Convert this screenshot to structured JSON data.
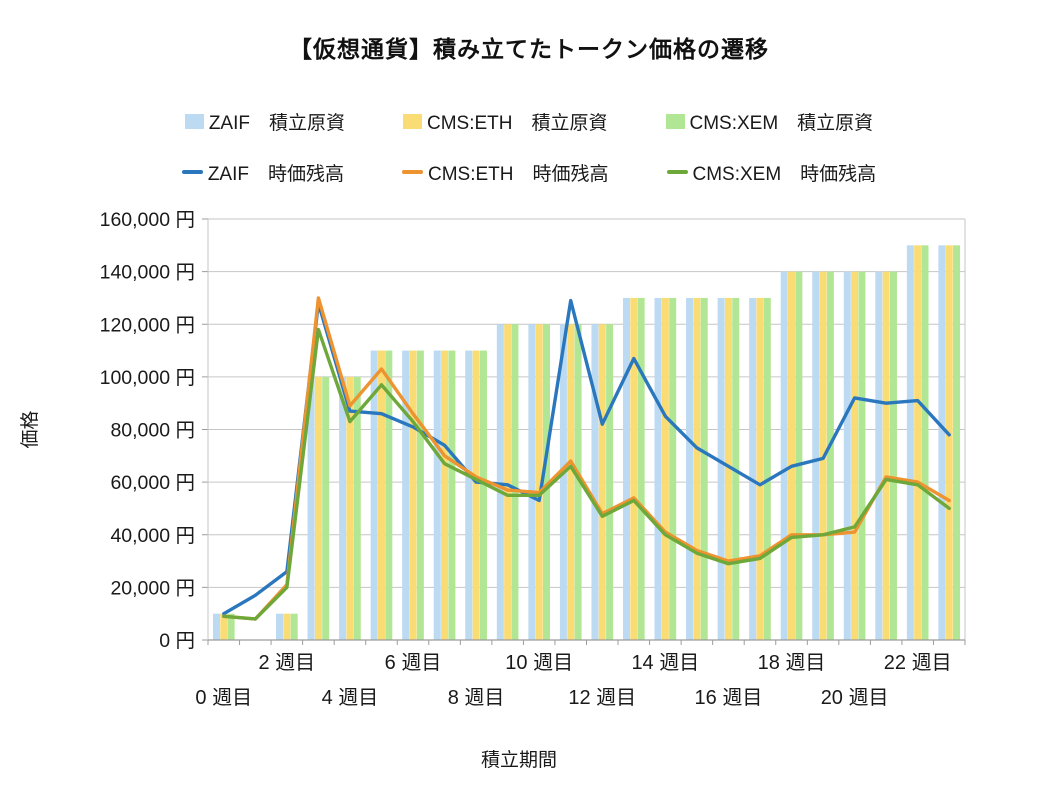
{
  "chart_data": {
    "type": "combo-bar-line",
    "title": "【仮想通貨】積み立てたトークン価格の遷移",
    "xlabel": "積立期間",
    "ylabel": "価格",
    "ylim": [
      0,
      160000
    ],
    "grid": true,
    "legend_position": "top",
    "colors": {
      "grid": "#c6c6c6",
      "axis": "#9c9c9c",
      "text": "#1a1a1a"
    },
    "weeks": [
      0,
      1,
      2,
      3,
      4,
      5,
      6,
      7,
      8,
      9,
      10,
      11,
      12,
      13,
      14,
      15,
      16,
      17,
      18,
      19,
      20,
      21,
      22,
      23
    ],
    "y_tick_values": [
      0,
      20000,
      40000,
      60000,
      80000,
      100000,
      120000,
      140000,
      160000
    ],
    "y_tick_labels": [
      "0 円",
      "20,000 円",
      "40,000 円",
      "60,000 円",
      "80,000 円",
      "100,000 円",
      "120,000 円",
      "140,000 円",
      "160,000 円"
    ],
    "x_ticks_upper": [
      {
        "week": 2,
        "label": "2 週目"
      },
      {
        "week": 6,
        "label": "6 週目"
      },
      {
        "week": 10,
        "label": "10 週目"
      },
      {
        "week": 14,
        "label": "14 週目"
      },
      {
        "week": 18,
        "label": "18 週目"
      },
      {
        "week": 22,
        "label": "22 週目"
      }
    ],
    "x_ticks_lower": [
      {
        "week": 0,
        "label": "0 週目"
      },
      {
        "week": 4,
        "label": "4 週目"
      },
      {
        "week": 8,
        "label": "8 週目"
      },
      {
        "week": 12,
        "label": "12 週目"
      },
      {
        "week": 16,
        "label": "16 週目"
      },
      {
        "week": 20,
        "label": "20 週目"
      }
    ],
    "bar_series": [
      {
        "name": "ZAIF　積立原資",
        "color": "#bcdaf2",
        "values": [
          10000,
          null,
          10000,
          100000,
          100000,
          110000,
          110000,
          110000,
          110000,
          120000,
          120000,
          120000,
          120000,
          130000,
          130000,
          130000,
          130000,
          130000,
          140000,
          140000,
          140000,
          140000,
          150000,
          150000
        ]
      },
      {
        "name": "CMS:ETH　積立原資",
        "color": "#fadc75",
        "values": [
          10000,
          null,
          10000,
          100000,
          100000,
          110000,
          110000,
          110000,
          110000,
          120000,
          120000,
          120000,
          120000,
          130000,
          130000,
          130000,
          130000,
          130000,
          140000,
          140000,
          140000,
          140000,
          150000,
          150000
        ]
      },
      {
        "name": "CMS:XEM　積立原資",
        "color": "#b1e794",
        "values": [
          10000,
          null,
          10000,
          100000,
          100000,
          110000,
          110000,
          110000,
          110000,
          120000,
          120000,
          120000,
          120000,
          130000,
          130000,
          130000,
          130000,
          130000,
          140000,
          140000,
          140000,
          140000,
          150000,
          150000
        ]
      }
    ],
    "line_series": [
      {
        "name": "ZAIF　時価残高",
        "color": "#2b77bd",
        "values": [
          10000,
          17000,
          26000,
          128000,
          87000,
          86000,
          81000,
          74000,
          60000,
          59000,
          53000,
          129000,
          82000,
          107000,
          85000,
          73000,
          66000,
          59000,
          66000,
          69000,
          92000,
          90000,
          91000,
          78000
        ]
      },
      {
        "name": "CMS:ETH　時価残高",
        "color": "#ed9330",
        "values": [
          9000,
          8000,
          21000,
          130000,
          89000,
          103000,
          86000,
          70000,
          62000,
          57000,
          56000,
          68000,
          48000,
          54000,
          41000,
          34000,
          30000,
          32000,
          40000,
          40000,
          41000,
          62000,
          60000,
          53000
        ]
      },
      {
        "name": "CMS:XEM　時価残高",
        "color": "#6fa83a",
        "values": [
          9000,
          8000,
          20000,
          118000,
          83000,
          97000,
          83000,
          67000,
          61000,
          55000,
          55000,
          66000,
          47000,
          53000,
          40000,
          33000,
          29000,
          31000,
          39000,
          40000,
          43000,
          61000,
          59000,
          50000
        ]
      }
    ]
  }
}
